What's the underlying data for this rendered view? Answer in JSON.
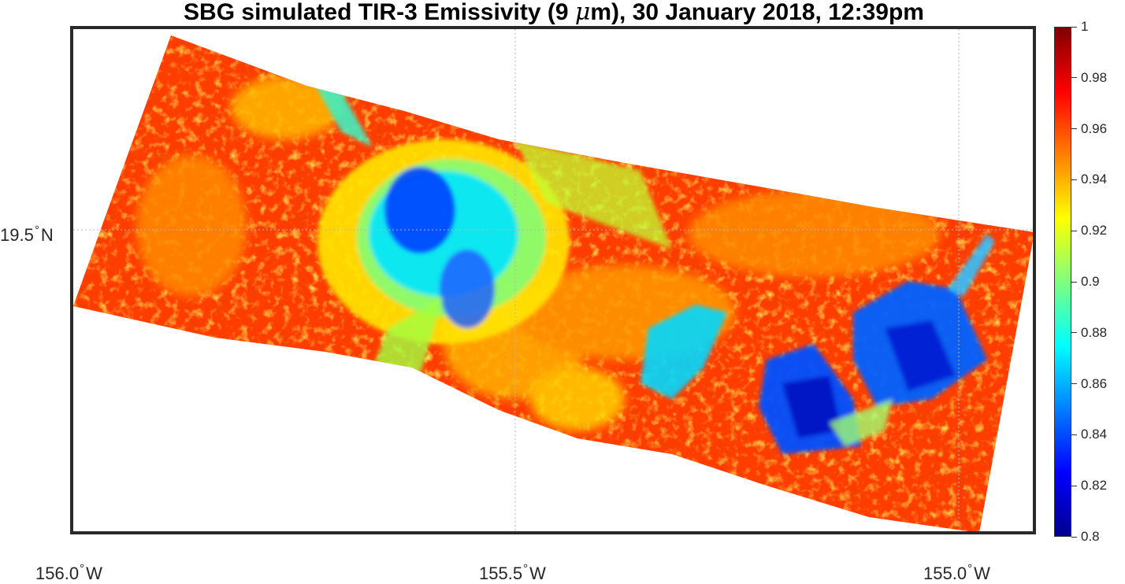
{
  "title": {
    "before": "SBG simulated TIR-3 Emissivity (9 ",
    "mu": "μ",
    "after": "m), 30 January 2018, 12:39pm"
  },
  "axes": {
    "lat_ticks": [
      {
        "value": "19.5",
        "hemisphere": "N"
      }
    ],
    "lon_ticks": [
      {
        "value": "156.0",
        "hemisphere": "W"
      },
      {
        "value": "155.5",
        "hemisphere": "W"
      },
      {
        "value": "155.0",
        "hemisphere": "W"
      }
    ],
    "degree_symbol": "°",
    "grid": true
  },
  "colorbar": {
    "min": 0.8,
    "max": 1,
    "colormap": "jet",
    "tick_labels": [
      "1",
      "0.98",
      "0.96",
      "0.94",
      "0.92",
      "0.9",
      "0.88",
      "0.86",
      "0.84",
      "0.82",
      "0.8"
    ]
  },
  "colors": {
    "frame": "#2a2a2a",
    "swath_dominant": "#ff3a00",
    "low_emissivity": "#0033ff",
    "mid_emissivity": "#00e0ff"
  }
}
